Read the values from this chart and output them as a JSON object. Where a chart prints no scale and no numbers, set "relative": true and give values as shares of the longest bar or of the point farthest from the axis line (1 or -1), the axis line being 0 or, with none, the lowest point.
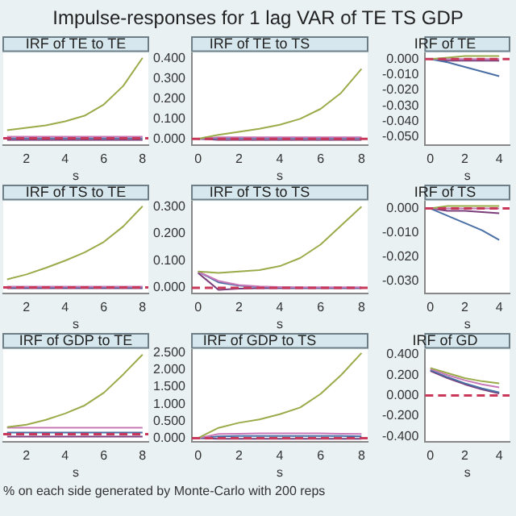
{
  "chart_data": [
    {
      "type": "line",
      "title": "IRF of TE to TE",
      "annotations": [
        "Impulse-responses for 1 lag VAR of TE TS GDP"
      ],
      "xlabel": "s",
      "relative": true,
      "tick_labels": "x",
      "x": [
        1,
        2,
        3,
        4,
        5,
        6,
        7,
        8
      ],
      "xlim": [
        0.8,
        8.3
      ],
      "xticks": [
        2,
        4,
        6,
        8
      ],
      "grid": false,
      "legend": false,
      "marker": "none",
      "ref_lines": [
        {
          "axis": "y",
          "value": 0,
          "color": "#c8385a",
          "line_style": "dashed"
        }
      ],
      "series": [
        {
          "color": "#9aab4a",
          "values": [
            0.1,
            0.13,
            0.16,
            0.21,
            0.28,
            0.42,
            0.65,
            1.0
          ]
        },
        {
          "color": "#c878b8",
          "values": [
            0.02,
            0.02,
            0.02,
            0.02,
            0.02,
            0.02,
            0.02,
            0.02
          ]
        },
        {
          "color": "#4a6fa5",
          "values": [
            0,
            0,
            0,
            0,
            0,
            0,
            0,
            0
          ]
        },
        {
          "color": "#7a3d7a",
          "values": [
            -0.02,
            -0.02,
            -0.02,
            -0.02,
            -0.02,
            -0.02,
            -0.02,
            -0.02
          ]
        }
      ]
    },
    {
      "type": "line",
      "title": "IRF of TE to TS",
      "xlabel": "s",
      "x": [
        0,
        1,
        2,
        3,
        4,
        5,
        6,
        7,
        8
      ],
      "xlim": [
        -0.3,
        8.3
      ],
      "xticks": [
        0,
        2,
        4,
        6,
        8
      ],
      "ylim": [
        -0.03,
        0.43
      ],
      "yticks": [
        {
          "value": 0,
          "label": "0.000"
        },
        {
          "value": 0.1,
          "label": "0.100"
        },
        {
          "value": 0.2,
          "label": "0.200"
        },
        {
          "value": 0.3,
          "label": "0.300"
        },
        {
          "value": 0.4,
          "label": "0.400"
        }
      ],
      "grid": false,
      "legend": false,
      "marker": "none",
      "ref_lines": [
        {
          "axis": "y",
          "value": 0,
          "color": "#c8385a",
          "line_style": "dashed"
        }
      ],
      "series": [
        {
          "color": "#9aab4a",
          "values": [
            0,
            0.02,
            0.035,
            0.05,
            0.07,
            0.1,
            0.15,
            0.23,
            0.35
          ]
        },
        {
          "color": "#c878b8",
          "values": [
            0,
            0.008,
            0.008,
            0.008,
            0.008,
            0.008,
            0.008,
            0.008,
            0.008
          ]
        },
        {
          "color": "#4a6fa5",
          "values": [
            0,
            0.004,
            0.004,
            0.004,
            0.004,
            0.004,
            0.004,
            0.004,
            0.004
          ]
        },
        {
          "color": "#7a3d7a",
          "values": [
            0,
            -0.005,
            -0.005,
            -0.005,
            -0.005,
            -0.005,
            -0.005,
            -0.005,
            -0.005
          ]
        }
      ]
    },
    {
      "type": "line",
      "title": "IRF of TE",
      "xlabel": "s",
      "x": [
        0,
        1,
        2,
        3,
        4
      ],
      "xlim": [
        -0.3,
        4.6
      ],
      "xticks": [
        0,
        2,
        4
      ],
      "ylim": [
        -0.055,
        0.004
      ],
      "yticks": [
        {
          "value": 0,
          "label": "0.000"
        },
        {
          "value": -0.01,
          "label": "-0.010"
        },
        {
          "value": -0.02,
          "label": "-0.020"
        },
        {
          "value": -0.03,
          "label": "-0.030"
        },
        {
          "value": -0.04,
          "label": "-0.040"
        },
        {
          "value": -0.05,
          "label": "-0.050"
        }
      ],
      "grid": false,
      "legend": false,
      "marker": "none",
      "ref_lines": [
        {
          "axis": "y",
          "value": 0,
          "color": "#c8385a",
          "line_style": "dashed"
        }
      ],
      "series": [
        {
          "color": "#9aab4a",
          "values": [
            0,
            0.001,
            0.002,
            0.002,
            0.002
          ]
        },
        {
          "color": "#c878b8",
          "values": [
            0,
            0,
            0,
            0,
            0
          ]
        },
        {
          "color": "#4a6fa5",
          "values": [
            0,
            -0.002,
            -0.005,
            -0.008,
            -0.011
          ]
        },
        {
          "color": "#7a3d7a",
          "values": [
            0,
            -0.001,
            -0.001,
            -0.001,
            -0.001
          ]
        }
      ]
    },
    {
      "type": "line",
      "title": "IRF of TS to TE",
      "xlabel": "s",
      "relative": true,
      "tick_labels": "x",
      "x": [
        1,
        2,
        3,
        4,
        5,
        6,
        7,
        8
      ],
      "xlim": [
        0.8,
        8.3
      ],
      "xticks": [
        2,
        4,
        6,
        8
      ],
      "grid": false,
      "legend": false,
      "marker": "none",
      "ref_lines": [
        {
          "axis": "y",
          "value": 0,
          "color": "#c8385a",
          "line_style": "dashed"
        }
      ],
      "series": [
        {
          "color": "#9aab4a",
          "values": [
            0.1,
            0.16,
            0.24,
            0.33,
            0.43,
            0.56,
            0.75,
            1.0
          ]
        },
        {
          "color": "#c878b8",
          "values": [
            0.01,
            0.01,
            0.01,
            0.01,
            0.01,
            0.01,
            0.01,
            0.01
          ]
        },
        {
          "color": "#4a6fa5",
          "values": [
            0,
            0,
            0,
            0,
            0,
            0,
            0,
            0
          ]
        },
        {
          "color": "#7a3d7a",
          "values": [
            -0.01,
            -0.01,
            -0.01,
            -0.01,
            -0.01,
            -0.01,
            -0.01,
            -0.01
          ]
        }
      ]
    },
    {
      "type": "line",
      "title": "IRF of TS to TS",
      "xlabel": "s",
      "x": [
        0,
        1,
        2,
        3,
        4,
        5,
        6,
        7,
        8
      ],
      "xlim": [
        -0.3,
        8.3
      ],
      "xticks": [
        0,
        2,
        4,
        6,
        8
      ],
      "ylim": [
        -0.02,
        0.32
      ],
      "yticks": [
        {
          "value": 0,
          "label": "0.000"
        },
        {
          "value": 0.1,
          "label": "0.100"
        },
        {
          "value": 0.2,
          "label": "0.200"
        },
        {
          "value": 0.3,
          "label": "0.300"
        }
      ],
      "grid": false,
      "legend": false,
      "marker": "none",
      "ref_lines": [
        {
          "axis": "y",
          "value": 0,
          "color": "#c8385a",
          "line_style": "dashed"
        }
      ],
      "series": [
        {
          "color": "#9aab4a",
          "values": [
            0.06,
            0.055,
            0.06,
            0.065,
            0.08,
            0.11,
            0.16,
            0.23,
            0.3
          ]
        },
        {
          "color": "#c878b8",
          "values": [
            0.06,
            0.025,
            0.01,
            0.005,
            0.003,
            0.002,
            0.002,
            0.002,
            0.002
          ]
        },
        {
          "color": "#4a6fa5",
          "values": [
            0.06,
            0.02,
            0.008,
            0.003,
            0.001,
            0,
            0,
            0,
            0
          ]
        },
        {
          "color": "#7a3d7a",
          "values": [
            0.055,
            -0.008,
            -0.003,
            -0.002,
            -0.002,
            -0.002,
            -0.002,
            -0.002,
            -0.002
          ]
        }
      ]
    },
    {
      "type": "line",
      "title": "IRF of TS",
      "xlabel": "s",
      "x": [
        0,
        1,
        2,
        3,
        4
      ],
      "xlim": [
        -0.3,
        4.6
      ],
      "xticks": [
        0,
        2,
        4
      ],
      "ylim": [
        -0.035,
        0.003
      ],
      "yticks": [
        {
          "value": 0,
          "label": "0.000"
        },
        {
          "value": -0.01,
          "label": "-0.010"
        },
        {
          "value": -0.02,
          "label": "-0.020"
        },
        {
          "value": -0.03,
          "label": "-0.030"
        }
      ],
      "grid": false,
      "legend": false,
      "marker": "none",
      "ref_lines": [
        {
          "axis": "y",
          "value": 0,
          "color": "#c8385a",
          "line_style": "dashed"
        }
      ],
      "series": [
        {
          "color": "#9aab4a",
          "values": [
            0,
            0.001,
            0.001,
            0.001,
            0.001
          ]
        },
        {
          "color": "#c878b8",
          "values": [
            0,
            0,
            0,
            0,
            0
          ]
        },
        {
          "color": "#4a6fa5",
          "values": [
            0,
            -0.003,
            -0.006,
            -0.009,
            -0.013
          ]
        },
        {
          "color": "#7a3d7a",
          "values": [
            0,
            -0.001,
            -0.001,
            -0.0015,
            -0.002
          ]
        }
      ]
    },
    {
      "type": "line",
      "title": "IRF of GDP to TE",
      "xlabel": "s",
      "relative": true,
      "tick_labels": "x",
      "x": [
        1,
        2,
        3,
        4,
        5,
        6,
        7,
        8
      ],
      "xlim": [
        0.8,
        8.3
      ],
      "xticks": [
        2,
        4,
        6,
        8
      ],
      "grid": false,
      "legend": false,
      "marker": "none",
      "ref_lines": [
        {
          "axis": "y",
          "value": 0,
          "color": "#c8385a",
          "line_style": "dashed"
        }
      ],
      "series": [
        {
          "color": "#9aab4a",
          "values": [
            0.09,
            0.12,
            0.18,
            0.26,
            0.36,
            0.52,
            0.75,
            1.0
          ]
        },
        {
          "color": "#c878b8",
          "values": [
            0.08,
            0.08,
            0.08,
            0.08,
            0.08,
            0.08,
            0.08,
            0.08
          ]
        },
        {
          "color": "#4a6fa5",
          "values": [
            0.02,
            0.02,
            0.02,
            0.02,
            0.02,
            0.02,
            0.02,
            0.02
          ]
        },
        {
          "color": "#7a3d7a",
          "values": [
            -0.03,
            -0.03,
            -0.03,
            -0.03,
            -0.03,
            -0.03,
            -0.03,
            -0.03
          ]
        }
      ]
    },
    {
      "type": "line",
      "title": "IRF of GDP to TS",
      "xlabel": "s",
      "x": [
        0,
        1,
        2,
        3,
        4,
        5,
        6,
        7,
        8
      ],
      "xlim": [
        -0.3,
        8.3
      ],
      "xticks": [
        0,
        2,
        4,
        6,
        8
      ],
      "ylim": [
        -0.1,
        2.6
      ],
      "yticks": [
        {
          "value": 0,
          "label": "0.000"
        },
        {
          "value": 0.5,
          "label": "0.500"
        },
        {
          "value": 1,
          "label": "1.000"
        },
        {
          "value": 1.5,
          "label": "1.500"
        },
        {
          "value": 2,
          "label": "2.000"
        },
        {
          "value": 2.5,
          "label": "2.500"
        }
      ],
      "grid": false,
      "legend": false,
      "marker": "none",
      "ref_lines": [
        {
          "axis": "y",
          "value": 0,
          "color": "#c8385a",
          "line_style": "dashed"
        }
      ],
      "series": [
        {
          "color": "#9aab4a",
          "values": [
            0,
            0.3,
            0.45,
            0.55,
            0.7,
            0.9,
            1.3,
            1.85,
            2.5
          ]
        },
        {
          "color": "#c878b8",
          "values": [
            0,
            0.12,
            0.13,
            0.14,
            0.14,
            0.14,
            0.14,
            0.13,
            0.12
          ]
        },
        {
          "color": "#4a6fa5",
          "values": [
            0,
            0.05,
            0.06,
            0.06,
            0.06,
            0.06,
            0.06,
            0.06,
            0.05
          ]
        },
        {
          "color": "#7a3d7a",
          "values": [
            0,
            -0.02,
            -0.02,
            -0.02,
            -0.02,
            -0.02,
            -0.02,
            -0.02,
            -0.02
          ]
        }
      ]
    },
    {
      "type": "line",
      "title": "IRF of GD",
      "xlabel": "s",
      "annotations": [
        "% on each side generated by Monte-Carlo with 200 reps"
      ],
      "x": [
        0,
        1,
        2,
        3,
        4
      ],
      "xlim": [
        -0.3,
        4.6
      ],
      "xticks": [
        0,
        2,
        4
      ],
      "ylim": [
        -0.45,
        0.45
      ],
      "yticks": [
        {
          "value": 0.4,
          "label": "0.400"
        },
        {
          "value": 0.2,
          "label": "0.200"
        },
        {
          "value": 0,
          "label": "0.000"
        },
        {
          "value": -0.2,
          "label": "-0.200"
        },
        {
          "value": -0.4,
          "label": "-0.400"
        }
      ],
      "grid": false,
      "legend": false,
      "marker": "none",
      "ref_lines": [
        {
          "axis": "y",
          "value": 0,
          "color": "#c8385a",
          "line_style": "dashed"
        }
      ],
      "series": [
        {
          "color": "#9aab4a",
          "values": [
            0.27,
            0.22,
            0.17,
            0.14,
            0.12
          ]
        },
        {
          "color": "#c878b8",
          "values": [
            0.26,
            0.2,
            0.15,
            0.11,
            0.08
          ]
        },
        {
          "color": "#4a6fa5",
          "values": [
            0.25,
            0.18,
            0.12,
            0.07,
            0.03
          ]
        },
        {
          "color": "#7a3d7a",
          "values": [
            0.24,
            0.17,
            0.11,
            0.06,
            0.02
          ]
        }
      ]
    }
  ]
}
